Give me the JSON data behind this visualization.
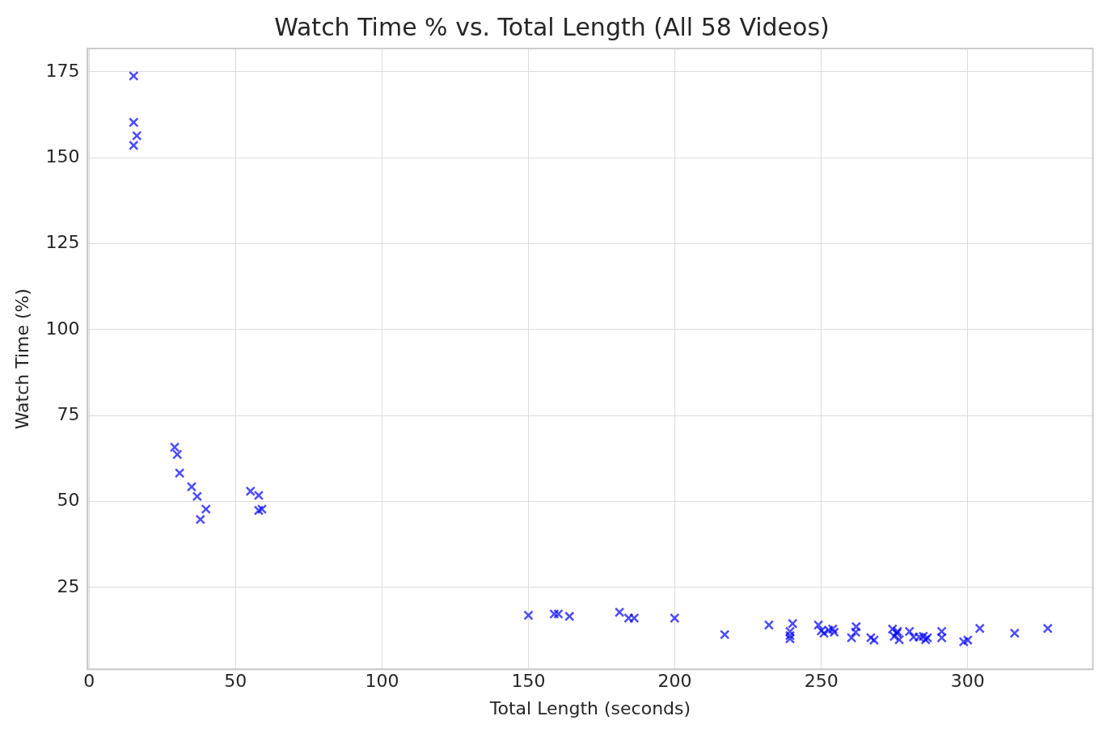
{
  "chart_data": {
    "type": "scatter",
    "title": "Watch Time % vs. Total Length (All 58 Videos)",
    "xlabel": "Total Length (seconds)",
    "ylabel": "Watch Time (%)",
    "x": [
      15.2,
      15.2,
      16.3,
      15.2,
      29.2,
      30.1,
      30.9,
      35,
      36.9,
      39.9,
      38,
      55.1,
      57.9,
      57.9,
      59,
      150,
      158.8,
      160.2,
      164,
      181.1,
      184.2,
      186.1,
      199.9,
      217,
      232.1,
      239.3,
      239.3,
      239.3,
      240.2,
      249,
      250,
      250.9,
      252.5,
      253.9,
      254.4,
      260.3,
      261.7,
      261.9,
      266.9,
      268,
      274.3,
      274.9,
      275.8,
      276.6,
      276,
      280.1,
      281.5,
      283.4,
      284.8,
      286.2,
      285.6,
      291.1,
      291.1,
      298.6,
      300,
      304.1,
      316,
      327.3
    ],
    "values": [
      173.8,
      160.3,
      156.4,
      153.6,
      65.8,
      63.7,
      58.3,
      54.3,
      51.5,
      47.8,
      44.8,
      53,
      51.8,
      47.4,
      47.8,
      16.9,
      17.3,
      17.3,
      16.6,
      17.8,
      16.1,
      16.1,
      16.1,
      11.3,
      14.1,
      12.2,
      11,
      10.1,
      14.5,
      14.1,
      12.4,
      11.7,
      12.6,
      12.9,
      12,
      10.4,
      12,
      13.6,
      10.4,
      9.7,
      12.9,
      10.8,
      11.7,
      9.8,
      12.2,
      12.2,
      10.6,
      10.6,
      10.8,
      10.4,
      9.8,
      12.2,
      10.4,
      9.2,
      9.7,
      13.1,
      11.7,
      13.1
    ],
    "color": "#0000ff",
    "marker": "cross",
    "grid": true,
    "legend": false,
    "xlim": [
      -0.5,
      342.7
    ],
    "ylim": [
      1.2,
      181.8
    ],
    "xticks": [
      0,
      50,
      100,
      150,
      200,
      250,
      300
    ],
    "yticks": [
      25,
      50,
      75,
      100,
      125,
      150,
      175
    ]
  }
}
